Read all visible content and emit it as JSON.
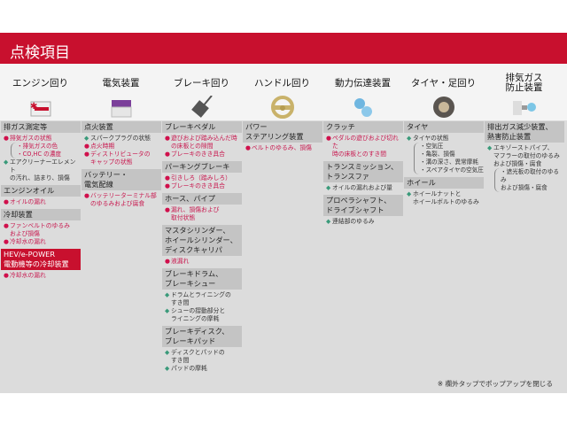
{
  "header": {
    "title": "点検項目"
  },
  "categories": [
    {
      "label": "エンジン回り",
      "icon": "engine-icon"
    },
    {
      "label": "電気装置",
      "icon": "battery-icon"
    },
    {
      "label": "ブレーキ回り",
      "icon": "brake-pedal-icon"
    },
    {
      "label": "ハンドル回り",
      "icon": "steering-wheel-icon"
    },
    {
      "label": "動力伝達装置",
      "icon": "gears-icon"
    },
    {
      "label": "タイヤ・足回り",
      "icon": "tire-icon"
    },
    {
      "label": "排気ガス\n防止装置",
      "icon": "exhaust-icon"
    }
  ],
  "colors": {
    "red": "#c8102e",
    "green": "#3a9a7a"
  },
  "columns": [
    [
      {
        "title": "排ガス測定等",
        "items": [
          {
            "c": "r",
            "t": "排気ガスの状態"
          },
          {
            "sub": "r",
            "t": "・排気ガスの色\n・CO,HC の濃度"
          },
          {
            "c": "g",
            "t": "エアクリーナーエレメント\nの汚れ、詰まり、損傷"
          }
        ]
      },
      {
        "title": "エンジンオイル",
        "items": [
          {
            "c": "r",
            "t": "オイルの漏れ"
          }
        ]
      },
      {
        "title": "冷却装置",
        "items": [
          {
            "c": "r",
            "t": "ファンベルトのゆるみ\nおよび損傷"
          },
          {
            "c": "r",
            "t": "冷却水の漏れ"
          }
        ]
      },
      {
        "title": "HEV/e-POWER\n電動機等の冷却装置",
        "red": true,
        "items": [
          {
            "c": "r",
            "t": "冷却水の漏れ"
          }
        ]
      }
    ],
    [
      {
        "title": "点火装置",
        "items": [
          {
            "c": "g",
            "t": "スパークプラグの状態"
          },
          {
            "c": "r",
            "t": "点火時期"
          },
          {
            "c": "r",
            "t": "ディストリビュータの\nキャップの状態"
          }
        ]
      },
      {
        "title": "バッテリー・\n電気配線",
        "items": [
          {
            "c": "r",
            "t": "バッテリーターミナル部\nのゆるみおよび腐食"
          }
        ]
      }
    ],
    [
      {
        "title": "ブレーキペダル",
        "items": [
          {
            "c": "r",
            "t": "遊びおよび踏み込んだ時\nの床板との隙間"
          },
          {
            "c": "r",
            "t": "ブレーキのきき具合"
          }
        ]
      },
      {
        "title": "パーキングブレーキ",
        "items": [
          {
            "c": "r",
            "t": "引きしろ（踏みしろ）"
          },
          {
            "c": "r",
            "t": "ブレーキのきき具合"
          }
        ]
      },
      {
        "title": "ホース、パイプ",
        "items": [
          {
            "c": "r",
            "t": "漏れ、損傷および\n取付状態"
          }
        ]
      },
      {
        "title": "マスタシリンダー、\nホイールシリンダー、\nディスクキャリパ",
        "items": [
          {
            "c": "r",
            "t": "液漏れ"
          }
        ]
      },
      {
        "title": "ブレーキドラム、\nブレーキシュー",
        "items": [
          {
            "c": "g",
            "t": "ドラムとライニングの\nすき間"
          },
          {
            "c": "g",
            "t": "シューの摺動部分と\nライニングの摩耗"
          }
        ]
      },
      {
        "title": "ブレーキディスク、\nブレーキパッド",
        "items": [
          {
            "c": "g",
            "t": "ディスクとパッドの\nすき間"
          },
          {
            "c": "g",
            "t": "パッドの摩耗"
          }
        ]
      }
    ],
    [
      {
        "title": "パワー\nステアリング装置",
        "items": [
          {
            "c": "r",
            "t": "ベルトのゆるみ、損傷"
          }
        ]
      }
    ],
    [
      {
        "title": "クラッチ",
        "items": [
          {
            "c": "r",
            "t": "ペダルの遊びおよび切れた\n時の床板とのすき間"
          }
        ]
      },
      {
        "title": "トランスミッション、\nトランスファ",
        "items": [
          {
            "c": "g",
            "t": "オイルの漏れおよび量"
          }
        ]
      },
      {
        "title": "プロペラシャフト、\nドライブシャフト",
        "items": [
          {
            "c": "g",
            "t": "連結部のゆるみ"
          }
        ]
      }
    ],
    [
      {
        "title": "タイヤ",
        "items": [
          {
            "c": "g",
            "t": "タイヤの状態"
          },
          {
            "sub": "g",
            "t": "・空気圧\n・亀裂、損傷\n・溝の深さ、異常摩耗\n・スペアタイヤの空気圧"
          }
        ]
      },
      {
        "title": "ホイール",
        "items": [
          {
            "c": "g",
            "t": "ホイールナットと\nホイールボルトのゆるみ"
          }
        ]
      }
    ],
    [
      {
        "title": "排出ガス減少装置、\n熱害防止装置",
        "items": [
          {
            "c": "g",
            "t": "エキゾーストパイプ、\nマフラーの取付のゆるみ\nおよび損傷・腐食"
          },
          {
            "sub": "g",
            "t": "・遮光板の取付のゆるみ\nおよび損傷・腐食"
          }
        ]
      }
    ]
  ],
  "footer": {
    "note": "※ 欄外タップでポップアップを閉じる"
  }
}
